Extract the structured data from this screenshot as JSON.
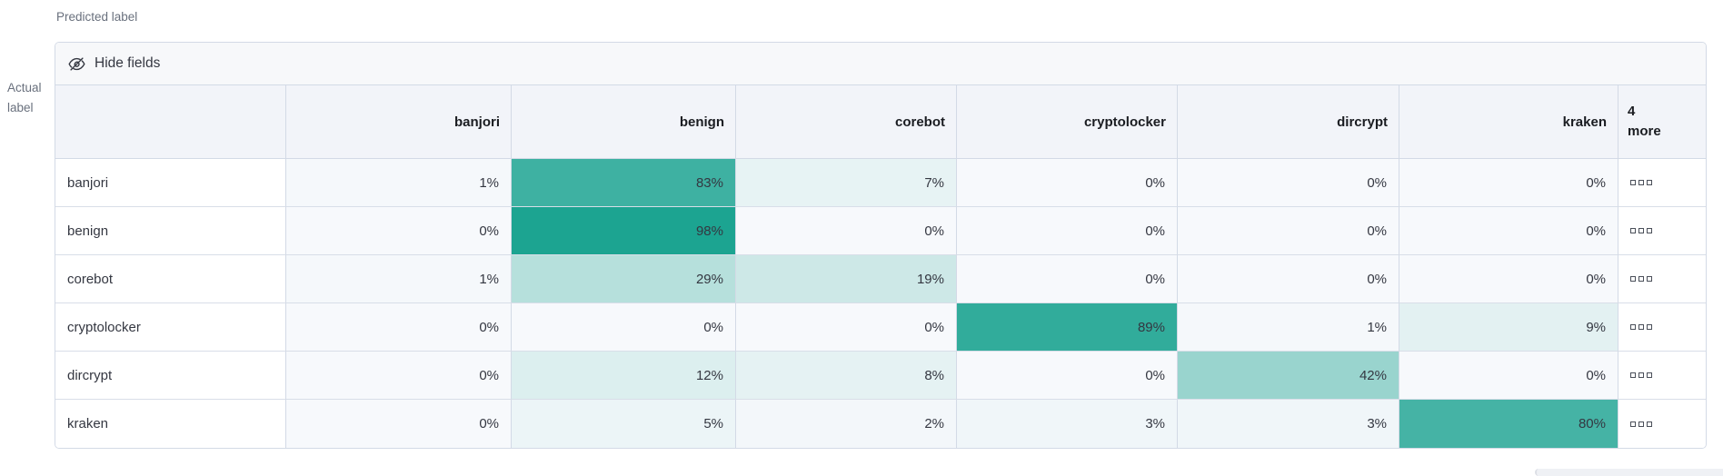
{
  "axes": {
    "predicted_label": "Predicted label",
    "actual_label": "Actual label"
  },
  "toolbar": {
    "hide_fields_label": "Hide fields"
  },
  "matrix": {
    "columns": [
      "banjori",
      "benign",
      "corebot",
      "cryptolocker",
      "dircrypt",
      "kraken"
    ],
    "more_column": {
      "count": "4",
      "word": "more"
    },
    "value_suffix": "%",
    "rows": [
      {
        "label": "banjori",
        "values": [
          1,
          83,
          7,
          0,
          0,
          0
        ]
      },
      {
        "label": "benign",
        "values": [
          0,
          98,
          0,
          0,
          0,
          0
        ]
      },
      {
        "label": "corebot",
        "values": [
          1,
          29,
          19,
          0,
          0,
          0
        ]
      },
      {
        "label": "cryptolocker",
        "values": [
          0,
          0,
          0,
          89,
          1,
          9
        ]
      },
      {
        "label": "dircrypt",
        "values": [
          0,
          12,
          8,
          0,
          42,
          0
        ]
      },
      {
        "label": "kraken",
        "values": [
          0,
          5,
          2,
          3,
          3,
          80
        ]
      }
    ]
  },
  "colors": {
    "heat_min": "#f7f9fc",
    "heat_max": "#18a28f",
    "border": "#d3dae6",
    "header_bg": "#f2f4f9",
    "toolbar_bg": "#f7f8fa",
    "text": "#343741",
    "muted_text": "#69707d"
  }
}
